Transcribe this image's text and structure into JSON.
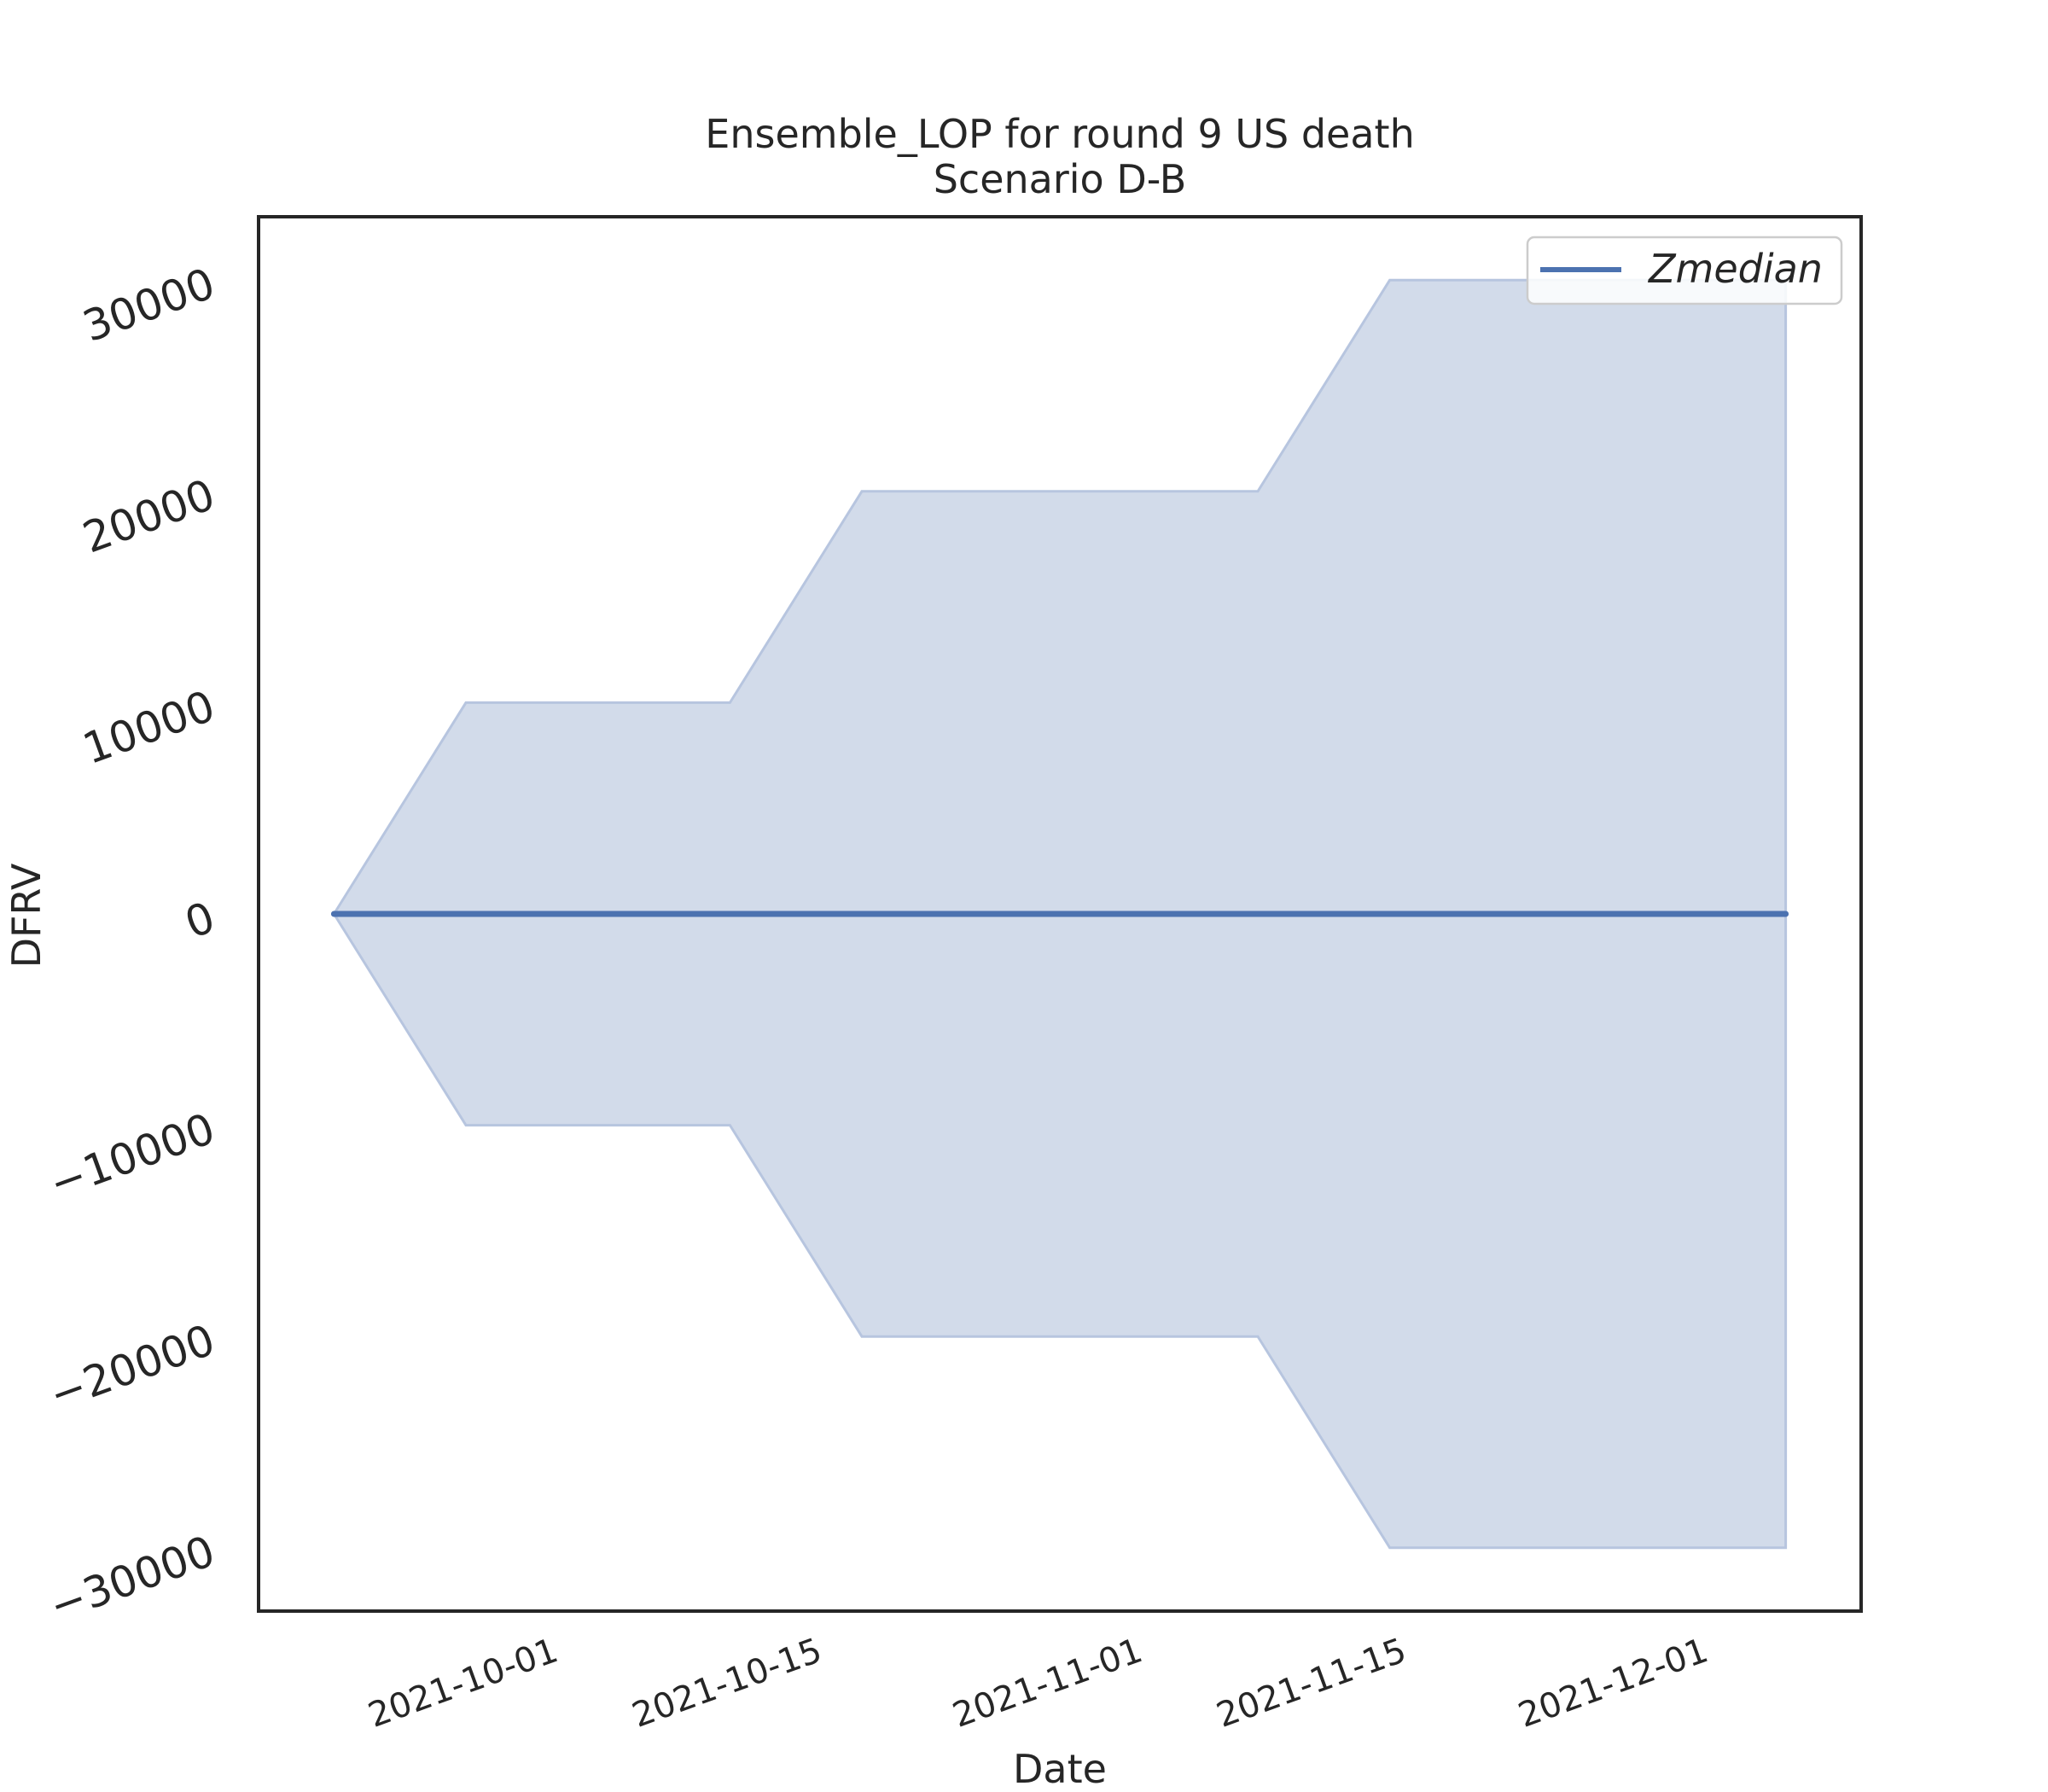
{
  "chart_data": {
    "type": "area",
    "title": "Ensemble_LOP for round 9 US death",
    "subtitle": "Scenario D-B",
    "xlabel": "Date",
    "ylabel": "DFRV",
    "x_ticks": [
      "2021-10-01",
      "2021-10-15",
      "2021-11-01",
      "2021-11-15",
      "2021-12-01"
    ],
    "y_ticks": [
      30000,
      20000,
      10000,
      0,
      -10000,
      -20000,
      -30000
    ],
    "y_tick_labels": [
      "30000",
      "20000",
      "10000",
      "0",
      "−10000",
      "−20000",
      "−30000"
    ],
    "ylim": [
      -33000,
      33000
    ],
    "xlim": [
      "2021-09-16",
      "2021-12-10"
    ],
    "grid": false,
    "legend_position": "top-right",
    "color": "#4c72b0",
    "band_color": "#d2dbea",
    "series": [
      {
        "name": "Zmedian",
        "x": [
          "2021-09-20",
          "2021-09-27",
          "2021-10-04",
          "2021-10-11",
          "2021-10-18",
          "2021-10-25",
          "2021-11-01",
          "2021-11-08",
          "2021-11-15",
          "2021-11-22",
          "2021-11-29",
          "2021-12-06"
        ],
        "y": [
          0,
          0,
          0,
          0,
          0,
          0,
          0,
          0,
          0,
          0,
          0,
          0
        ]
      }
    ],
    "band": {
      "x": [
        "2021-09-20",
        "2021-09-27",
        "2021-10-04",
        "2021-10-11",
        "2021-10-18",
        "2021-10-25",
        "2021-11-01",
        "2021-11-08",
        "2021-11-15",
        "2021-11-22",
        "2021-11-29",
        "2021-12-06"
      ],
      "lower": [
        0,
        -10000,
        -10000,
        -10000,
        -20000,
        -20000,
        -20000,
        -20000,
        -30000,
        -30000,
        -30000,
        -30000
      ],
      "upper": [
        0,
        10000,
        10000,
        10000,
        20000,
        20000,
        20000,
        20000,
        30000,
        30000,
        30000,
        30000
      ]
    }
  }
}
